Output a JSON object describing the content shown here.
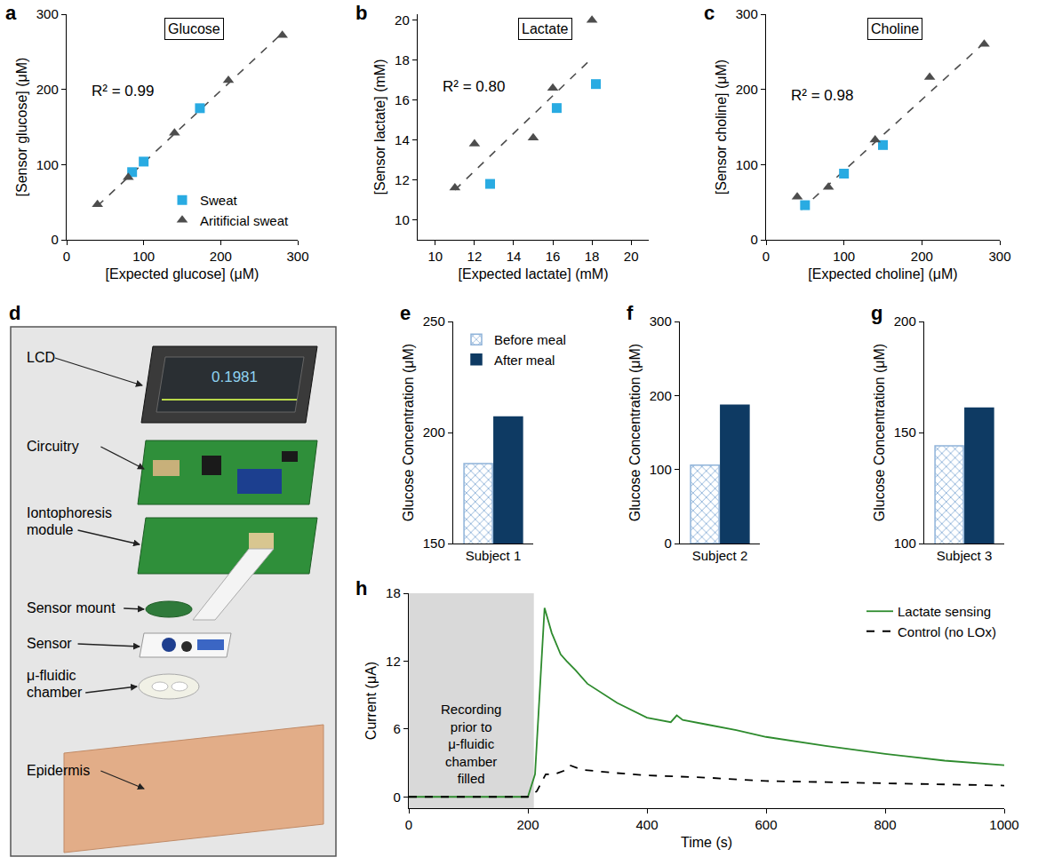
{
  "chart_data": [
    {
      "label": "a",
      "type": "scatter",
      "title": "Glucose",
      "x_label": "[Expected glucose] (μM)",
      "y_label": "[Sensor glucose] (μM)",
      "xlim": [
        0,
        300
      ],
      "xticks": [
        0,
        100,
        200,
        300
      ],
      "ylim": [
        0,
        300
      ],
      "yticks": [
        0,
        100,
        200,
        300
      ],
      "annotations": [
        "R² = 0.99"
      ],
      "legend": "lower right",
      "series": [
        {
          "name": "Sweat",
          "color": "#29abe2",
          "marker": "square",
          "x": [
            85,
            100,
            173
          ],
          "values": [
            90,
            104,
            175
          ]
        },
        {
          "name": "Aritificial sweat",
          "color": "#4d4d4d",
          "marker": "triangle",
          "x": [
            40,
            80,
            140,
            210,
            280
          ],
          "values": [
            47,
            83,
            142,
            212,
            272
          ]
        }
      ],
      "fit": {
        "x": [
          40,
          280
        ],
        "values": [
          45,
          275
        ],
        "color": "#4d4d4d",
        "line_style": "dashed"
      }
    },
    {
      "label": "b",
      "type": "scatter",
      "title": "Lactate",
      "x_label": "[Expected lactate] (mM)",
      "y_label": "[Sensor lactate] (mM)",
      "xlim": [
        9.1,
        20.9
      ],
      "xticks": [
        10,
        12,
        14,
        16,
        18,
        20
      ],
      "ylim": [
        9,
        20.3
      ],
      "yticks": [
        10,
        12,
        14,
        16,
        18,
        20
      ],
      "annotations": [
        "R² = 0.80"
      ],
      "series": [
        {
          "color": "#29abe2",
          "marker": "square",
          "x": [
            12.8,
            16.2,
            18.2
          ],
          "values": [
            11.8,
            15.6,
            16.8
          ]
        },
        {
          "color": "#4d4d4d",
          "marker": "triangle",
          "x": [
            11,
            12,
            15,
            16,
            18
          ],
          "values": [
            11.6,
            13.8,
            14.1,
            16.6,
            20
          ]
        }
      ],
      "fit": {
        "x": [
          11,
          18
        ],
        "values": [
          11.5,
          18.1
        ],
        "color": "#4d4d4d",
        "line_style": "dashed"
      }
    },
    {
      "label": "c",
      "type": "scatter",
      "title": "Choline",
      "x_label": "[Expected choline] (μM)",
      "y_label": "[Sensor choline] (μM)",
      "xlim": [
        0,
        300
      ],
      "xticks": [
        0,
        100,
        200,
        300
      ],
      "ylim": [
        0,
        300
      ],
      "yticks": [
        0,
        100,
        200,
        300
      ],
      "annotations": [
        "R² = 0.98"
      ],
      "series": [
        {
          "color": "#29abe2",
          "marker": "square",
          "x": [
            50,
            100,
            150
          ],
          "values": [
            46,
            88,
            126
          ]
        },
        {
          "color": "#4d4d4d",
          "marker": "triangle",
          "x": [
            40,
            80,
            140,
            210,
            280
          ],
          "values": [
            57,
            70,
            133,
            216,
            260
          ]
        }
      ],
      "fit": {
        "x": [
          45,
          280
        ],
        "values": [
          40,
          262
        ],
        "color": "#4d4d4d",
        "line_style": "dashed"
      }
    },
    {
      "label": "e",
      "type": "bar",
      "categories": [
        "Subject 1"
      ],
      "y_label": "Glucose Concentration (μM)",
      "ylim": [
        150,
        250
      ],
      "yticks": [
        150,
        200,
        250
      ],
      "legend": "upper left",
      "series": [
        {
          "name": "Before meal",
          "color": "#8fb3d9",
          "marker": "hatched",
          "values": [
            186
          ]
        },
        {
          "name": "After meal",
          "color": "#0e3a63",
          "values": [
            207
          ]
        }
      ]
    },
    {
      "label": "f",
      "type": "bar",
      "categories": [
        "Subject 2"
      ],
      "y_label": "Glucose Concentration (μM)",
      "ylim": [
        0,
        300
      ],
      "yticks": [
        0,
        100,
        200,
        300
      ],
      "series": [
        {
          "color": "#8fb3d9",
          "marker": "hatched",
          "values": [
            106
          ]
        },
        {
          "color": "#0e3a63",
          "values": [
            187
          ]
        }
      ]
    },
    {
      "label": "g",
      "type": "bar",
      "categories": [
        "Subject 3"
      ],
      "y_label": "Glucose Concentration (μM)",
      "ylim": [
        100,
        200
      ],
      "yticks": [
        100,
        150,
        200
      ],
      "series": [
        {
          "color": "#8fb3d9",
          "marker": "hatched",
          "values": [
            144
          ]
        },
        {
          "color": "#0e3a63",
          "values": [
            161
          ]
        }
      ]
    },
    {
      "label": "h",
      "type": "line",
      "x_label": "Time (s)",
      "y_label": "Current (μA)",
      "xlim": [
        0,
        1000
      ],
      "xticks": [
        0,
        200,
        400,
        600,
        800,
        1000
      ],
      "ylim": [
        -1,
        18
      ],
      "yticks": [
        0,
        6,
        12,
        18
      ],
      "legend": "upper right",
      "shaded": {
        "x": [
          0,
          210
        ],
        "text": [
          "Recording",
          "prior to",
          "μ-fluidic",
          "chamber",
          "filled"
        ]
      },
      "series": [
        {
          "name": "Lactate sensing",
          "color": "#2e8b2e",
          "line_style": "solid",
          "x": [
            0,
            100,
            200,
            212,
            220,
            228,
            240,
            255,
            265,
            280,
            300,
            350,
            400,
            420,
            440,
            450,
            460,
            500,
            550,
            600,
            700,
            800,
            900,
            1000
          ],
          "values": [
            0,
            0,
            0,
            2,
            9,
            16.7,
            14.5,
            12.6,
            12,
            11.2,
            10,
            8.3,
            7,
            6.8,
            6.6,
            7.2,
            6.8,
            6.4,
            5.9,
            5.3,
            4.5,
            3.8,
            3.2,
            2.8
          ]
        },
        {
          "name": "Control (no LOx)",
          "color": "#000000",
          "line_style": "dashed",
          "x": [
            0,
            100,
            200,
            215,
            230,
            245,
            260,
            270,
            290,
            350,
            400,
            500,
            600,
            700,
            800,
            900,
            1000
          ],
          "values": [
            0,
            0,
            0,
            0.5,
            2,
            2,
            2.3,
            2.8,
            2.4,
            2.1,
            1.9,
            1.7,
            1.4,
            1.3,
            1.2,
            1.1,
            1.0
          ]
        }
      ]
    }
  ],
  "diagram": {
    "label": "d",
    "labels": [
      "LCD",
      "Circuitry",
      "Iontophoresis module",
      "Sensor mount",
      "Sensor",
      "μ-fluidic chamber",
      "Epidermis"
    ],
    "screen_text": "0.1981"
  }
}
